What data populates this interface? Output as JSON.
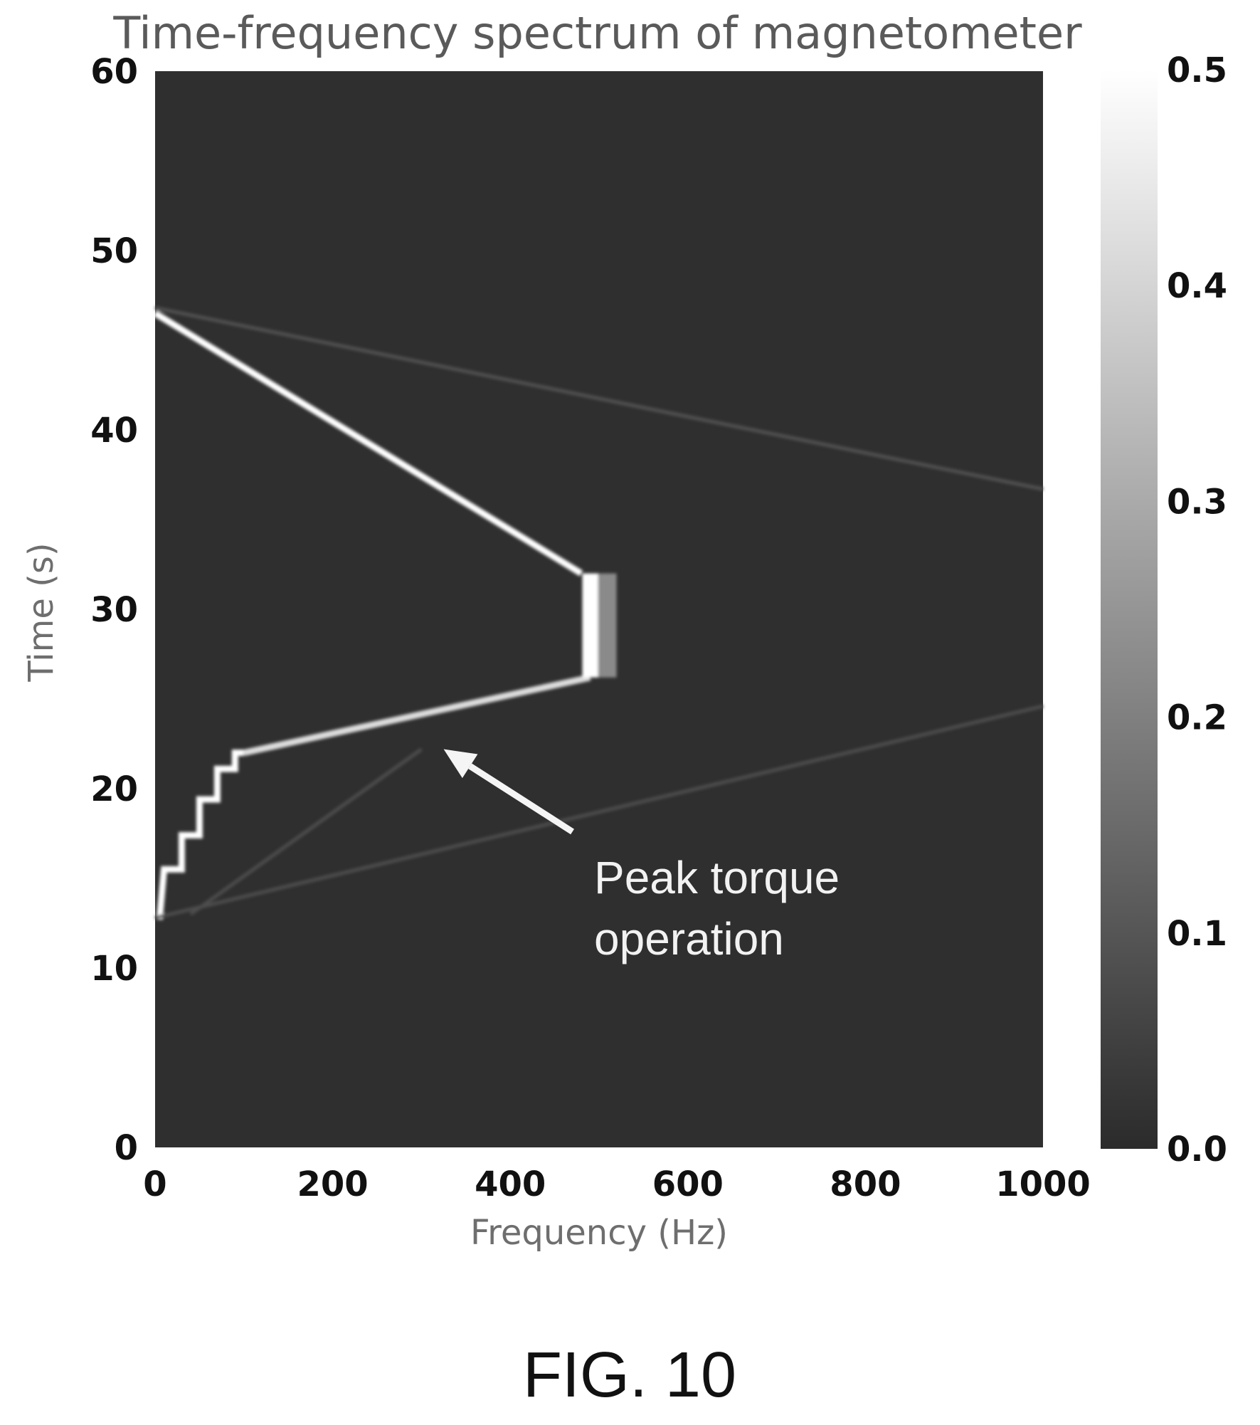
{
  "chart_data": {
    "type": "heatmap",
    "title": "Time-frequency spectrum of magnetometer",
    "xlabel": "Frequency (Hz)",
    "ylabel": "Time (s)",
    "xlim": [
      0,
      1000
    ],
    "ylim": [
      0,
      60
    ],
    "xticks": [
      0,
      200,
      400,
      600,
      800,
      1000
    ],
    "yticks": [
      0,
      10,
      20,
      30,
      40,
      50,
      60
    ],
    "colorbar": {
      "range": [
        0.0,
        0.5
      ],
      "ticks": [
        "0.0",
        "0.1",
        "0.2",
        "0.3",
        "0.4",
        "0.5"
      ]
    },
    "background_value": 0.02,
    "traces": [
      {
        "kind": "staircase",
        "value": 0.5,
        "points": [
          [
            5,
            12.7
          ],
          [
            10,
            15.5
          ],
          [
            30,
            15.5
          ],
          [
            30,
            17.4
          ],
          [
            50,
            17.4
          ],
          [
            50,
            19.4
          ],
          [
            70,
            19.4
          ],
          [
            70,
            21.1
          ],
          [
            90,
            21.1
          ],
          [
            90,
            22.0
          ],
          [
            100,
            22.0
          ]
        ]
      },
      {
        "kind": "line",
        "value": 0.5,
        "points": [
          [
            0,
            46.5
          ],
          [
            480,
            32.0
          ]
        ]
      },
      {
        "kind": "line",
        "value": 0.42,
        "points": [
          [
            100,
            22.0
          ],
          [
            490,
            26.2
          ]
        ]
      },
      {
        "kind": "band",
        "value": 0.5,
        "freq": 490,
        "t_start": 26.2,
        "t_end": 32.0
      },
      {
        "kind": "line",
        "value": 0.09,
        "points": [
          [
            0,
            46.8
          ],
          [
            1000,
            36.7
          ]
        ]
      },
      {
        "kind": "line",
        "value": 0.08,
        "points": [
          [
            0,
            12.8
          ],
          [
            1000,
            24.6
          ]
        ]
      },
      {
        "kind": "line",
        "value": 0.08,
        "points": [
          [
            40,
            13.0
          ],
          [
            300,
            22.2
          ]
        ]
      }
    ],
    "annotation": {
      "lines": [
        "Peak torque",
        "operation"
      ],
      "arrow_from": [
        470,
        17.6
      ],
      "arrow_to": [
        325,
        22.2
      ]
    }
  },
  "figure_label": "FIG. 10"
}
